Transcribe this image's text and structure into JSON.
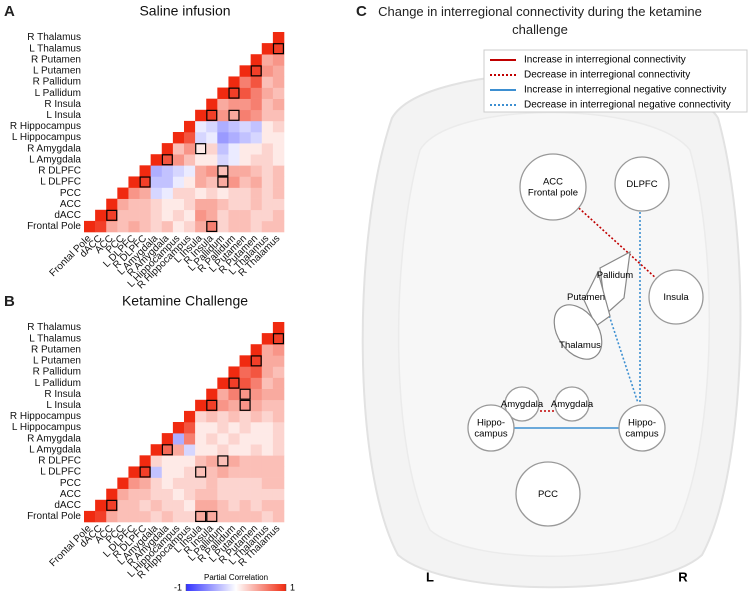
{
  "chart_data": [
    {
      "type": "heatmap",
      "panel": "A",
      "title": "Saline infusion",
      "categories": [
        "Frontal Pole",
        "dACC",
        "ACC",
        "PCC",
        "L DLPFC",
        "R DLPFC",
        "L Amygdala",
        "R Amygdala",
        "L Hippocampus",
        "R Hippocampus",
        "L Insula",
        "R Insula",
        "L Pallidum",
        "R Pallidum",
        "L Putamen",
        "R Putamen",
        "L Thalamus",
        "R Thalamus"
      ],
      "values": [
        [
          1,
          0.9,
          0.4,
          0.3,
          0.4,
          0.3,
          0.2,
          0.3,
          0.1,
          0.2,
          0.4,
          0.6,
          0.2,
          0.3,
          0.3,
          0.2,
          0.3,
          0.3
        ],
        [
          1,
          0.9,
          0.3,
          0.3,
          0.3,
          0.2,
          0.1,
          0.2,
          0.1,
          0.5,
          0.4,
          0.2,
          0.3,
          0.3,
          0.2,
          0.2,
          0.3
        ],
        [
          1,
          0.4,
          0.3,
          0.3,
          0.2,
          0.1,
          0.1,
          0.2,
          0.4,
          0.4,
          0.3,
          0.2,
          0.2,
          0.3,
          0.2,
          0.2
        ],
        [
          1,
          0.5,
          0.4,
          -0.2,
          -0.1,
          0.2,
          0.2,
          0.1,
          0.2,
          0.1,
          0.2,
          0.2,
          0.3,
          0.2,
          0.3
        ],
        [
          1,
          0.9,
          -0.3,
          -0.3,
          -0.1,
          0.1,
          0.4,
          0.3,
          0.4,
          0.5,
          0.3,
          0.4,
          0.2,
          0.3
        ],
        [
          1,
          -0.4,
          -0.3,
          -0.2,
          -0.1,
          0.4,
          0.5,
          0.3,
          0.4,
          0.4,
          0.3,
          0.2,
          0.3
        ],
        [
          1,
          0.8,
          0.5,
          0.3,
          0.1,
          0.1,
          -0.2,
          -0.1,
          0.1,
          0.2,
          0.2,
          0.1
        ],
        [
          1,
          0.3,
          0.5,
          0.1,
          0.2,
          -0.3,
          -0.1,
          0.1,
          0.1,
          0.2,
          0.1
        ],
        [
          1,
          0.8,
          -0.2,
          -0.1,
          -0.5,
          -0.4,
          -0.3,
          -0.2,
          0.1,
          0.1
        ],
        [
          1,
          -0.1,
          -0.2,
          -0.4,
          -0.3,
          -0.2,
          -0.3,
          0.1,
          0.2
        ],
        [
          1,
          0.9,
          0.5,
          0.4,
          0.6,
          0.5,
          0.3,
          0.3
        ],
        [
          1,
          0.4,
          0.5,
          0.5,
          0.6,
          0.3,
          0.4
        ],
        [
          1,
          0.9,
          0.8,
          0.6,
          0.4,
          0.3
        ],
        [
          1,
          0.6,
          0.8,
          0.3,
          0.4
        ],
        [
          1,
          0.9,
          0.5,
          0.4
        ],
        [
          1,
          0.4,
          0.5
        ],
        [
          1,
          0.9
        ],
        [
          1
        ]
      ],
      "outlined": [
        [
          1,
          2
        ],
        [
          4,
          5
        ],
        [
          0,
          11
        ],
        [
          4,
          12
        ],
        [
          5,
          12
        ],
        [
          6,
          7
        ],
        [
          7,
          10
        ],
        [
          10,
          11
        ],
        [
          10,
          13
        ],
        [
          12,
          13
        ],
        [
          14,
          15
        ],
        [
          16,
          17
        ]
      ]
    },
    {
      "type": "heatmap",
      "panel": "B",
      "title": "Ketamine Challenge",
      "categories": [
        "Frontal Pole",
        "dACC",
        "ACC",
        "PCC",
        "L DLPFC",
        "R DLPFC",
        "L Amygdala",
        "R Amygdala",
        "L Hippocampus",
        "R Hippocampus",
        "L Insula",
        "R Insula",
        "L Pallidum",
        "R Pallidum",
        "L Putamen",
        "R Putamen",
        "L Thalamus",
        "R Thalamus"
      ],
      "values": [
        [
          1,
          0.9,
          0.4,
          0.3,
          0.3,
          0.3,
          0.2,
          0.3,
          0.2,
          0.2,
          0.4,
          0.4,
          0.3,
          0.3,
          0.3,
          0.3,
          0.2,
          0.3
        ],
        [
          1,
          0.9,
          0.3,
          0.3,
          0.2,
          0.3,
          0.2,
          0.2,
          0.1,
          0.4,
          0.4,
          0.3,
          0.2,
          0.3,
          0.2,
          0.3,
          0.3
        ],
        [
          1,
          0.4,
          0.3,
          0.3,
          0.2,
          0.2,
          0.1,
          0.2,
          0.3,
          0.3,
          0.2,
          0.2,
          0.2,
          0.2,
          0.2,
          0.2
        ],
        [
          1,
          0.5,
          0.4,
          0.2,
          0.1,
          0.2,
          0.2,
          0.2,
          0.3,
          0.2,
          0.2,
          0.2,
          0.2,
          0.3,
          0.3
        ],
        [
          1,
          0.9,
          -0.3,
          0.1,
          0.1,
          0.2,
          0.3,
          0.3,
          0.4,
          0.3,
          0.3,
          0.3,
          0.3,
          0.3
        ],
        [
          1,
          0.2,
          0.1,
          0.1,
          0.1,
          0.3,
          0.4,
          0.3,
          0.4,
          0.3,
          0.3,
          0.3,
          0.3
        ],
        [
          1,
          0.7,
          0.4,
          -0.2,
          0.1,
          0.1,
          0.2,
          0.1,
          0.1,
          0.2,
          0.1,
          0.2
        ],
        [
          1,
          -0.4,
          0.6,
          0.1,
          0.2,
          0.1,
          0.2,
          0.1,
          0.1,
          0.1,
          0.2
        ],
        [
          1,
          0.8,
          0.1,
          0.1,
          0.2,
          0.1,
          0.2,
          0.1,
          0.1,
          0.2
        ],
        [
          1,
          0.2,
          0.3,
          0.2,
          0.3,
          0.2,
          0.3,
          0.2,
          0.3
        ],
        [
          1,
          0.9,
          0.5,
          0.4,
          0.5,
          0.4,
          0.3,
          0.3
        ],
        [
          1,
          0.4,
          0.6,
          0.5,
          0.5,
          0.4,
          0.4
        ],
        [
          1,
          0.9,
          0.8,
          0.6,
          0.3,
          0.4
        ],
        [
          1,
          0.7,
          0.8,
          0.4,
          0.3
        ],
        [
          1,
          0.9,
          0.4,
          0.4
        ],
        [
          1,
          0.4,
          0.5
        ],
        [
          1,
          0.9
        ],
        [
          1
        ]
      ],
      "outlined": [
        [
          0,
          10
        ],
        [
          0,
          11
        ],
        [
          1,
          2
        ],
        [
          4,
          5
        ],
        [
          4,
          10
        ],
        [
          5,
          12
        ],
        [
          6,
          7
        ],
        [
          10,
          11
        ],
        [
          10,
          14
        ],
        [
          11,
          14
        ],
        [
          12,
          13
        ],
        [
          14,
          15
        ],
        [
          16,
          17
        ]
      ]
    }
  ],
  "colorbar": {
    "label": "Partial Correlation",
    "ticks": [
      -1,
      1
    ],
    "low": "#3434ff",
    "mid": "#ffffff",
    "high": "#f02a10"
  },
  "diagram": {
    "panel": "C",
    "title": "Change in interregional connectivity during the ketamine challenge",
    "legend": [
      {
        "label": "Increase in interregional connectivity",
        "color": "#c00000",
        "style": "solid"
      },
      {
        "label": "Decrease in interregional connectivity",
        "color": "#c00000",
        "style": "dotted"
      },
      {
        "label": "Increase in interregional negative connectivity",
        "color": "#3d8fd1",
        "style": "solid"
      },
      {
        "label": "Decrease in interregional negative connectivity",
        "color": "#3d8fd1",
        "style": "dotted"
      }
    ],
    "nodes": [
      {
        "lines": [
          "ACC",
          "Frontal pole"
        ]
      },
      {
        "lines": [
          "DLPFC"
        ]
      },
      {
        "lines": [
          "Insula"
        ]
      },
      {
        "lines": [
          "Pallidum"
        ]
      },
      {
        "lines": [
          "Putamen"
        ]
      },
      {
        "lines": [
          "Thalamus"
        ]
      },
      {
        "lines": [
          "Amygdala"
        ]
      },
      {
        "lines": [
          "Amygdala"
        ]
      },
      {
        "lines": [
          "Hippo-",
          "campus"
        ]
      },
      {
        "lines": [
          "Hippo-",
          "campus"
        ]
      },
      {
        "lines": [
          "PCC"
        ]
      }
    ],
    "sides": [
      "L",
      "R"
    ]
  }
}
